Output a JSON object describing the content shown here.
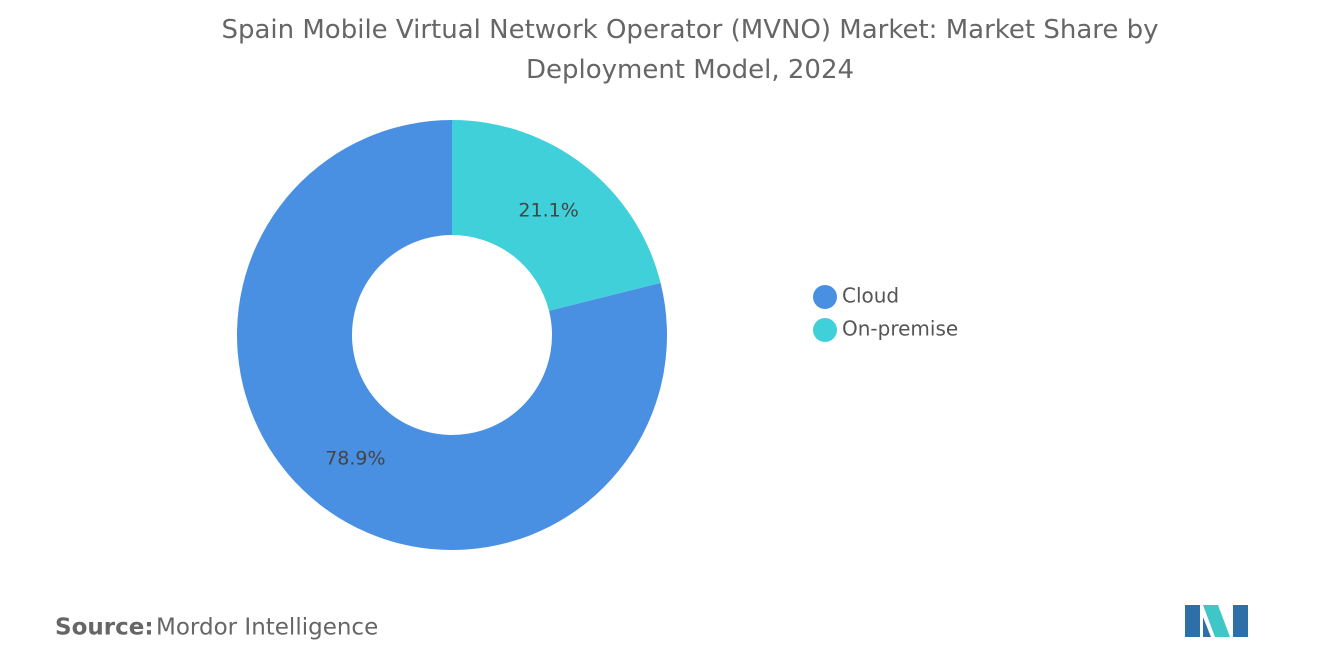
{
  "chart_data": {
    "type": "donut",
    "title": "Spain Mobile Virtual Network Operator (MVNO) Market: Market Share by Deployment Model, 2024",
    "categories": [
      "Cloud",
      "On-premise"
    ],
    "values": [
      78.9,
      21.1
    ],
    "value_labels": [
      "78.9%",
      "21.1%"
    ],
    "colors": [
      "#4a90e2",
      "#3fd0d9"
    ],
    "legend": "right"
  },
  "source": {
    "label": "Source:",
    "text": "Mordor Intelligence"
  }
}
